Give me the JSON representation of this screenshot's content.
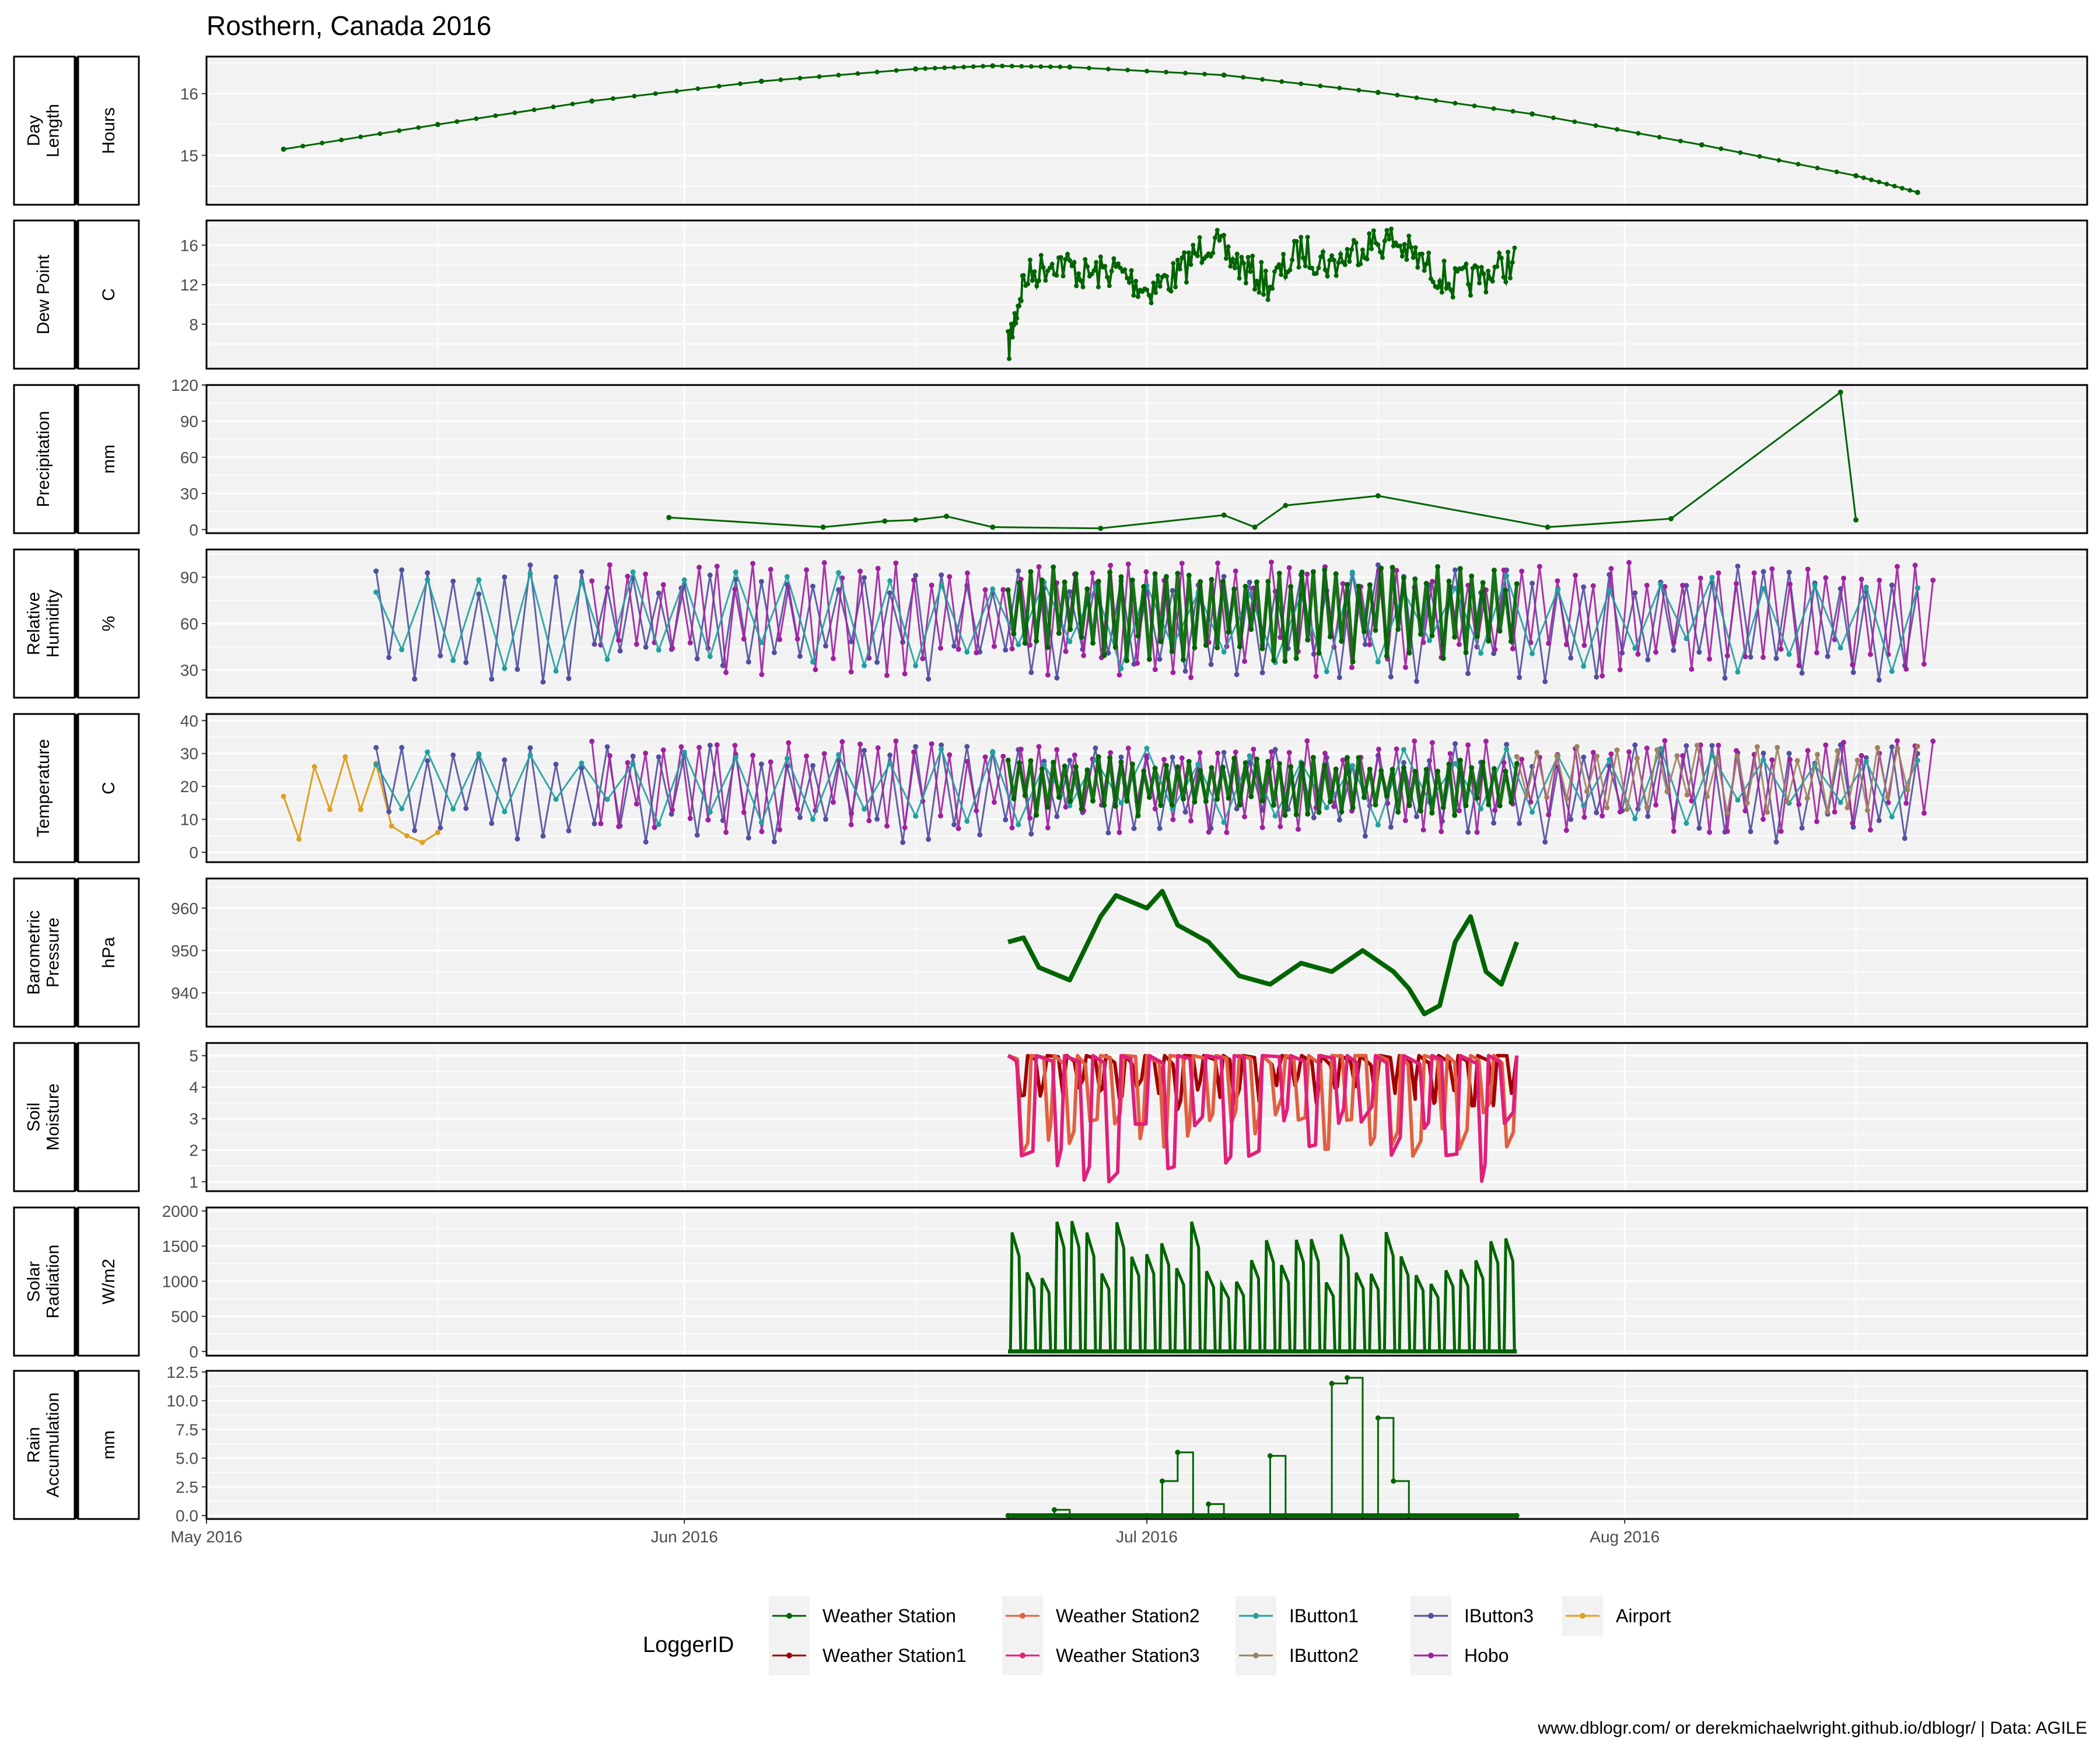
{
  "title": "Rosthern, Canada 2016",
  "caption": "www.dblogr.com/ or derekmichaelwright.github.io/dblogr/ | Data: AGILE",
  "legend": {
    "title": "LoggerID",
    "items": [
      {
        "name": "Weather Station",
        "color": "#006400"
      },
      {
        "name": "Weather Station2",
        "color": "#e06040"
      },
      {
        "name": "IButton1",
        "color": "#20a0a0"
      },
      {
        "name": "IButton3",
        "color": "#5050a0"
      },
      {
        "name": "Airport",
        "color": "#e0a020"
      },
      {
        "name": "Weather Station1",
        "color": "#a00000"
      },
      {
        "name": "Weather Station3",
        "color": "#e0207a"
      },
      {
        "name": "IButton2",
        "color": "#a08060"
      },
      {
        "name": "Hobo",
        "color": "#a020a0"
      }
    ]
  },
  "chart_data": {
    "type": "line",
    "x_axis": {
      "type": "date",
      "range": [
        "2016-05-01",
        "2016-08-31"
      ],
      "ticks": [
        {
          "date": "2016-05-01",
          "label": "May 2016"
        },
        {
          "date": "2016-06-01",
          "label": "Jun 2016"
        },
        {
          "date": "2016-07-01",
          "label": "Jul 2016"
        },
        {
          "date": "2016-08-01",
          "label": "Aug 2016"
        }
      ]
    },
    "panels": [
      {
        "id": "day-length",
        "strip": [
          "Day",
          "Length"
        ],
        "unit": "Hours",
        "ylim": [
          14.2,
          16.6
        ],
        "yticks": [
          15,
          16
        ],
        "series": [
          {
            "name": "Weather Station",
            "style": "dots-line",
            "points": [
              [
                "2016-05-06",
                15.1
              ],
              [
                "2016-05-16",
                15.5
              ],
              [
                "2016-05-26",
                15.88
              ],
              [
                "2016-06-06",
                16.2
              ],
              [
                "2016-06-16",
                16.4
              ],
              [
                "2016-06-21",
                16.45
              ],
              [
                "2016-06-26",
                16.43
              ],
              [
                "2016-07-06",
                16.3
              ],
              [
                "2016-07-16",
                16.02
              ],
              [
                "2016-07-26",
                15.67
              ],
              [
                "2016-08-06",
                15.17
              ],
              [
                "2016-08-16",
                14.67
              ],
              [
                "2016-08-20",
                14.4
              ]
            ]
          }
        ]
      },
      {
        "id": "dew-point",
        "strip": [
          "Dew Point"
        ],
        "unit": "C",
        "ylim": [
          3.5,
          18.5
        ],
        "yticks": [
          8,
          12,
          16
        ],
        "series": [
          {
            "name": "Weather Station",
            "style": "dense",
            "points": [
              [
                "2016-06-22",
                5.5
              ],
              [
                "2016-06-23",
                12.5
              ],
              [
                "2016-06-25",
                14.5
              ],
              [
                "2016-06-27",
                13.0
              ],
              [
                "2016-06-29",
                13.5
              ],
              [
                "2016-07-01",
                11.5
              ],
              [
                "2016-07-03",
                13.0
              ],
              [
                "2016-07-05",
                16.5
              ],
              [
                "2016-07-07",
                14.0
              ],
              [
                "2016-07-09",
                12.0
              ],
              [
                "2016-07-11",
                15.5
              ],
              [
                "2016-07-13",
                14.0
              ],
              [
                "2016-07-15",
                16.0
              ],
              [
                "2016-07-17",
                16.5
              ],
              [
                "2016-07-19",
                14.0
              ],
              [
                "2016-07-21",
                12.0
              ],
              [
                "2016-07-23",
                13.0
              ],
              [
                "2016-07-25",
                14.5
              ]
            ]
          }
        ]
      },
      {
        "id": "precipitation",
        "strip": [
          "Precipitation"
        ],
        "unit": "mm",
        "ylim": [
          -3,
          120
        ],
        "yticks": [
          0,
          30,
          60,
          90,
          120
        ],
        "series": [
          {
            "name": "Weather Station",
            "style": "dots-line",
            "points": [
              [
                "2016-05-31",
                10
              ],
              [
                "2016-06-10",
                2
              ],
              [
                "2016-06-14",
                7
              ],
              [
                "2016-06-16",
                8
              ],
              [
                "2016-06-18",
                11
              ],
              [
                "2016-06-21",
                2
              ],
              [
                "2016-06-28",
                1
              ],
              [
                "2016-07-06",
                12
              ],
              [
                "2016-07-08",
                2
              ],
              [
                "2016-07-10",
                20
              ],
              [
                "2016-07-16",
                28
              ],
              [
                "2016-07-27",
                2
              ],
              [
                "2016-08-04",
                9
              ],
              [
                "2016-08-15",
                114
              ],
              [
                "2016-08-16",
                8
              ]
            ]
          }
        ]
      },
      {
        "id": "relative-humidity",
        "strip": [
          "Relative",
          "Humidity"
        ],
        "unit": "%",
        "ylim": [
          12,
          108
        ],
        "yticks": [
          30,
          60,
          90
        ],
        "series": [
          {
            "name": "IButton3",
            "style": "zigzag",
            "start": "2016-05-12",
            "end": "2016-08-20",
            "low": 22,
            "high": 98,
            "segments": 120
          },
          {
            "name": "Hobo",
            "style": "zigzag",
            "start": "2016-05-26",
            "end": "2016-08-21",
            "low": 25,
            "high": 100,
            "segments": 150
          },
          {
            "name": "IButton1",
            "style": "zigzag",
            "start": "2016-05-12",
            "end": "2016-08-20",
            "low": 28,
            "high": 95,
            "segments": 60
          },
          {
            "name": "Weather Station",
            "style": "dense",
            "start": "2016-06-22",
            "end": "2016-07-25",
            "low": 35,
            "high": 97,
            "segments": 90
          }
        ]
      },
      {
        "id": "temperature",
        "strip": [
          "Temperature"
        ],
        "unit": "C",
        "ylim": [
          -3,
          42
        ],
        "yticks": [
          0,
          10,
          20,
          30,
          40
        ],
        "series": [
          {
            "name": "Airport",
            "style": "dots-line",
            "points": [
              [
                "2016-05-06",
                17
              ],
              [
                "2016-05-07",
                4
              ],
              [
                "2016-05-08",
                26
              ],
              [
                "2016-05-09",
                13
              ],
              [
                "2016-05-10",
                29
              ],
              [
                "2016-05-11",
                13
              ],
              [
                "2016-05-12",
                27
              ],
              [
                "2016-05-13",
                8
              ],
              [
                "2016-05-14",
                5
              ],
              [
                "2016-05-15",
                3
              ],
              [
                "2016-05-16",
                6
              ]
            ]
          },
          {
            "name": "IButton3",
            "style": "zigzag",
            "start": "2016-05-12",
            "end": "2016-08-20",
            "low": 3,
            "high": 33,
            "segments": 120
          },
          {
            "name": "Hobo",
            "style": "zigzag",
            "start": "2016-05-26",
            "end": "2016-08-21",
            "low": 6,
            "high": 34,
            "segments": 150
          },
          {
            "name": "IButton1",
            "style": "zigzag",
            "start": "2016-05-12",
            "end": "2016-08-20",
            "low": 8,
            "high": 32,
            "segments": 60
          },
          {
            "name": "IButton2",
            "style": "zigzag",
            "start": "2016-07-25",
            "end": "2016-08-20",
            "low": 12,
            "high": 33,
            "segments": 40
          },
          {
            "name": "Weather Station",
            "style": "dense",
            "start": "2016-06-22",
            "end": "2016-07-25",
            "low": 11,
            "high": 29,
            "segments": 90
          }
        ]
      },
      {
        "id": "barometric-pressure",
        "strip": [
          "Barometric",
          "Pressure"
        ],
        "unit": "hPa",
        "ylim": [
          932,
          967
        ],
        "yticks": [
          940,
          950,
          960
        ],
        "series": [
          {
            "name": "Weather Station",
            "style": "thick",
            "points": [
              [
                "2016-06-22",
                952
              ],
              [
                "2016-06-23",
                953
              ],
              [
                "2016-06-24",
                946
              ],
              [
                "2016-06-26",
                943
              ],
              [
                "2016-06-28",
                958
              ],
              [
                "2016-06-29",
                963
              ],
              [
                "2016-07-01",
                960
              ],
              [
                "2016-07-02",
                964
              ],
              [
                "2016-07-03",
                956
              ],
              [
                "2016-07-05",
                952
              ],
              [
                "2016-07-07",
                944
              ],
              [
                "2016-07-09",
                942
              ],
              [
                "2016-07-11",
                947
              ],
              [
                "2016-07-13",
                945
              ],
              [
                "2016-07-15",
                950
              ],
              [
                "2016-07-17",
                945
              ],
              [
                "2016-07-18",
                941
              ],
              [
                "2016-07-19",
                935
              ],
              [
                "2016-07-20",
                937
              ],
              [
                "2016-07-21",
                952
              ],
              [
                "2016-07-22",
                958
              ],
              [
                "2016-07-23",
                945
              ],
              [
                "2016-07-24",
                942
              ],
              [
                "2016-07-25",
                952
              ]
            ]
          }
        ]
      },
      {
        "id": "soil-moisture",
        "strip": [
          "Soil",
          "Moisture"
        ],
        "unit": "",
        "ylim": [
          0.7,
          5.4
        ],
        "yticks": [
          1,
          2,
          3,
          4,
          5
        ],
        "series": [
          {
            "name": "Weather Station1",
            "style": "steps",
            "start": "2016-06-22",
            "end": "2016-07-25",
            "low": 3.3,
            "high": 5.0,
            "segments": 26
          },
          {
            "name": "Weather Station2",
            "style": "steps",
            "start": "2016-06-22",
            "end": "2016-07-25",
            "low": 1.4,
            "high": 5.0,
            "segments": 22
          },
          {
            "name": "Weather Station3",
            "style": "steps",
            "start": "2016-06-22",
            "end": "2016-07-25",
            "low": 1.0,
            "high": 5.0,
            "segments": 18
          }
        ]
      },
      {
        "id": "solar-radiation",
        "strip": [
          "Solar",
          "Radiation"
        ],
        "unit": "W/m2",
        "ylim": [
          -60,
          2050
        ],
        "yticks": [
          0,
          500,
          1000,
          1500,
          2000
        ],
        "series": [
          {
            "name": "Weather Station",
            "style": "daily",
            "start": "2016-06-22",
            "end": "2016-07-25",
            "low": 0,
            "high": 1700,
            "segments": 34
          }
        ]
      },
      {
        "id": "rain-accumulation",
        "strip": [
          "Rain",
          "Accumulation"
        ],
        "unit": "mm",
        "ylim": [
          -0.3,
          12.6
        ],
        "yticks": [
          0.0,
          2.5,
          5.0,
          7.5,
          10.0,
          12.5
        ],
        "series": [
          {
            "name": "Weather Station",
            "style": "stepline",
            "points": [
              [
                "2016-06-22",
                0
              ],
              [
                "2016-06-25",
                0.5
              ],
              [
                "2016-06-26",
                0
              ],
              [
                "2016-07-01",
                0
              ],
              [
                "2016-07-02",
                3
              ],
              [
                "2016-07-03",
                5.5
              ],
              [
                "2016-07-04",
                0
              ],
              [
                "2016-07-05",
                1
              ],
              [
                "2016-07-06",
                0
              ],
              [
                "2016-07-09",
                5.2
              ],
              [
                "2016-07-10",
                0
              ],
              [
                "2016-07-13",
                11.5
              ],
              [
                "2016-07-14",
                12
              ],
              [
                "2016-07-15",
                0
              ],
              [
                "2016-07-16",
                8.5
              ],
              [
                "2016-07-17",
                3
              ],
              [
                "2016-07-18",
                0
              ],
              [
                "2016-07-25",
                0
              ]
            ]
          }
        ]
      }
    ]
  }
}
